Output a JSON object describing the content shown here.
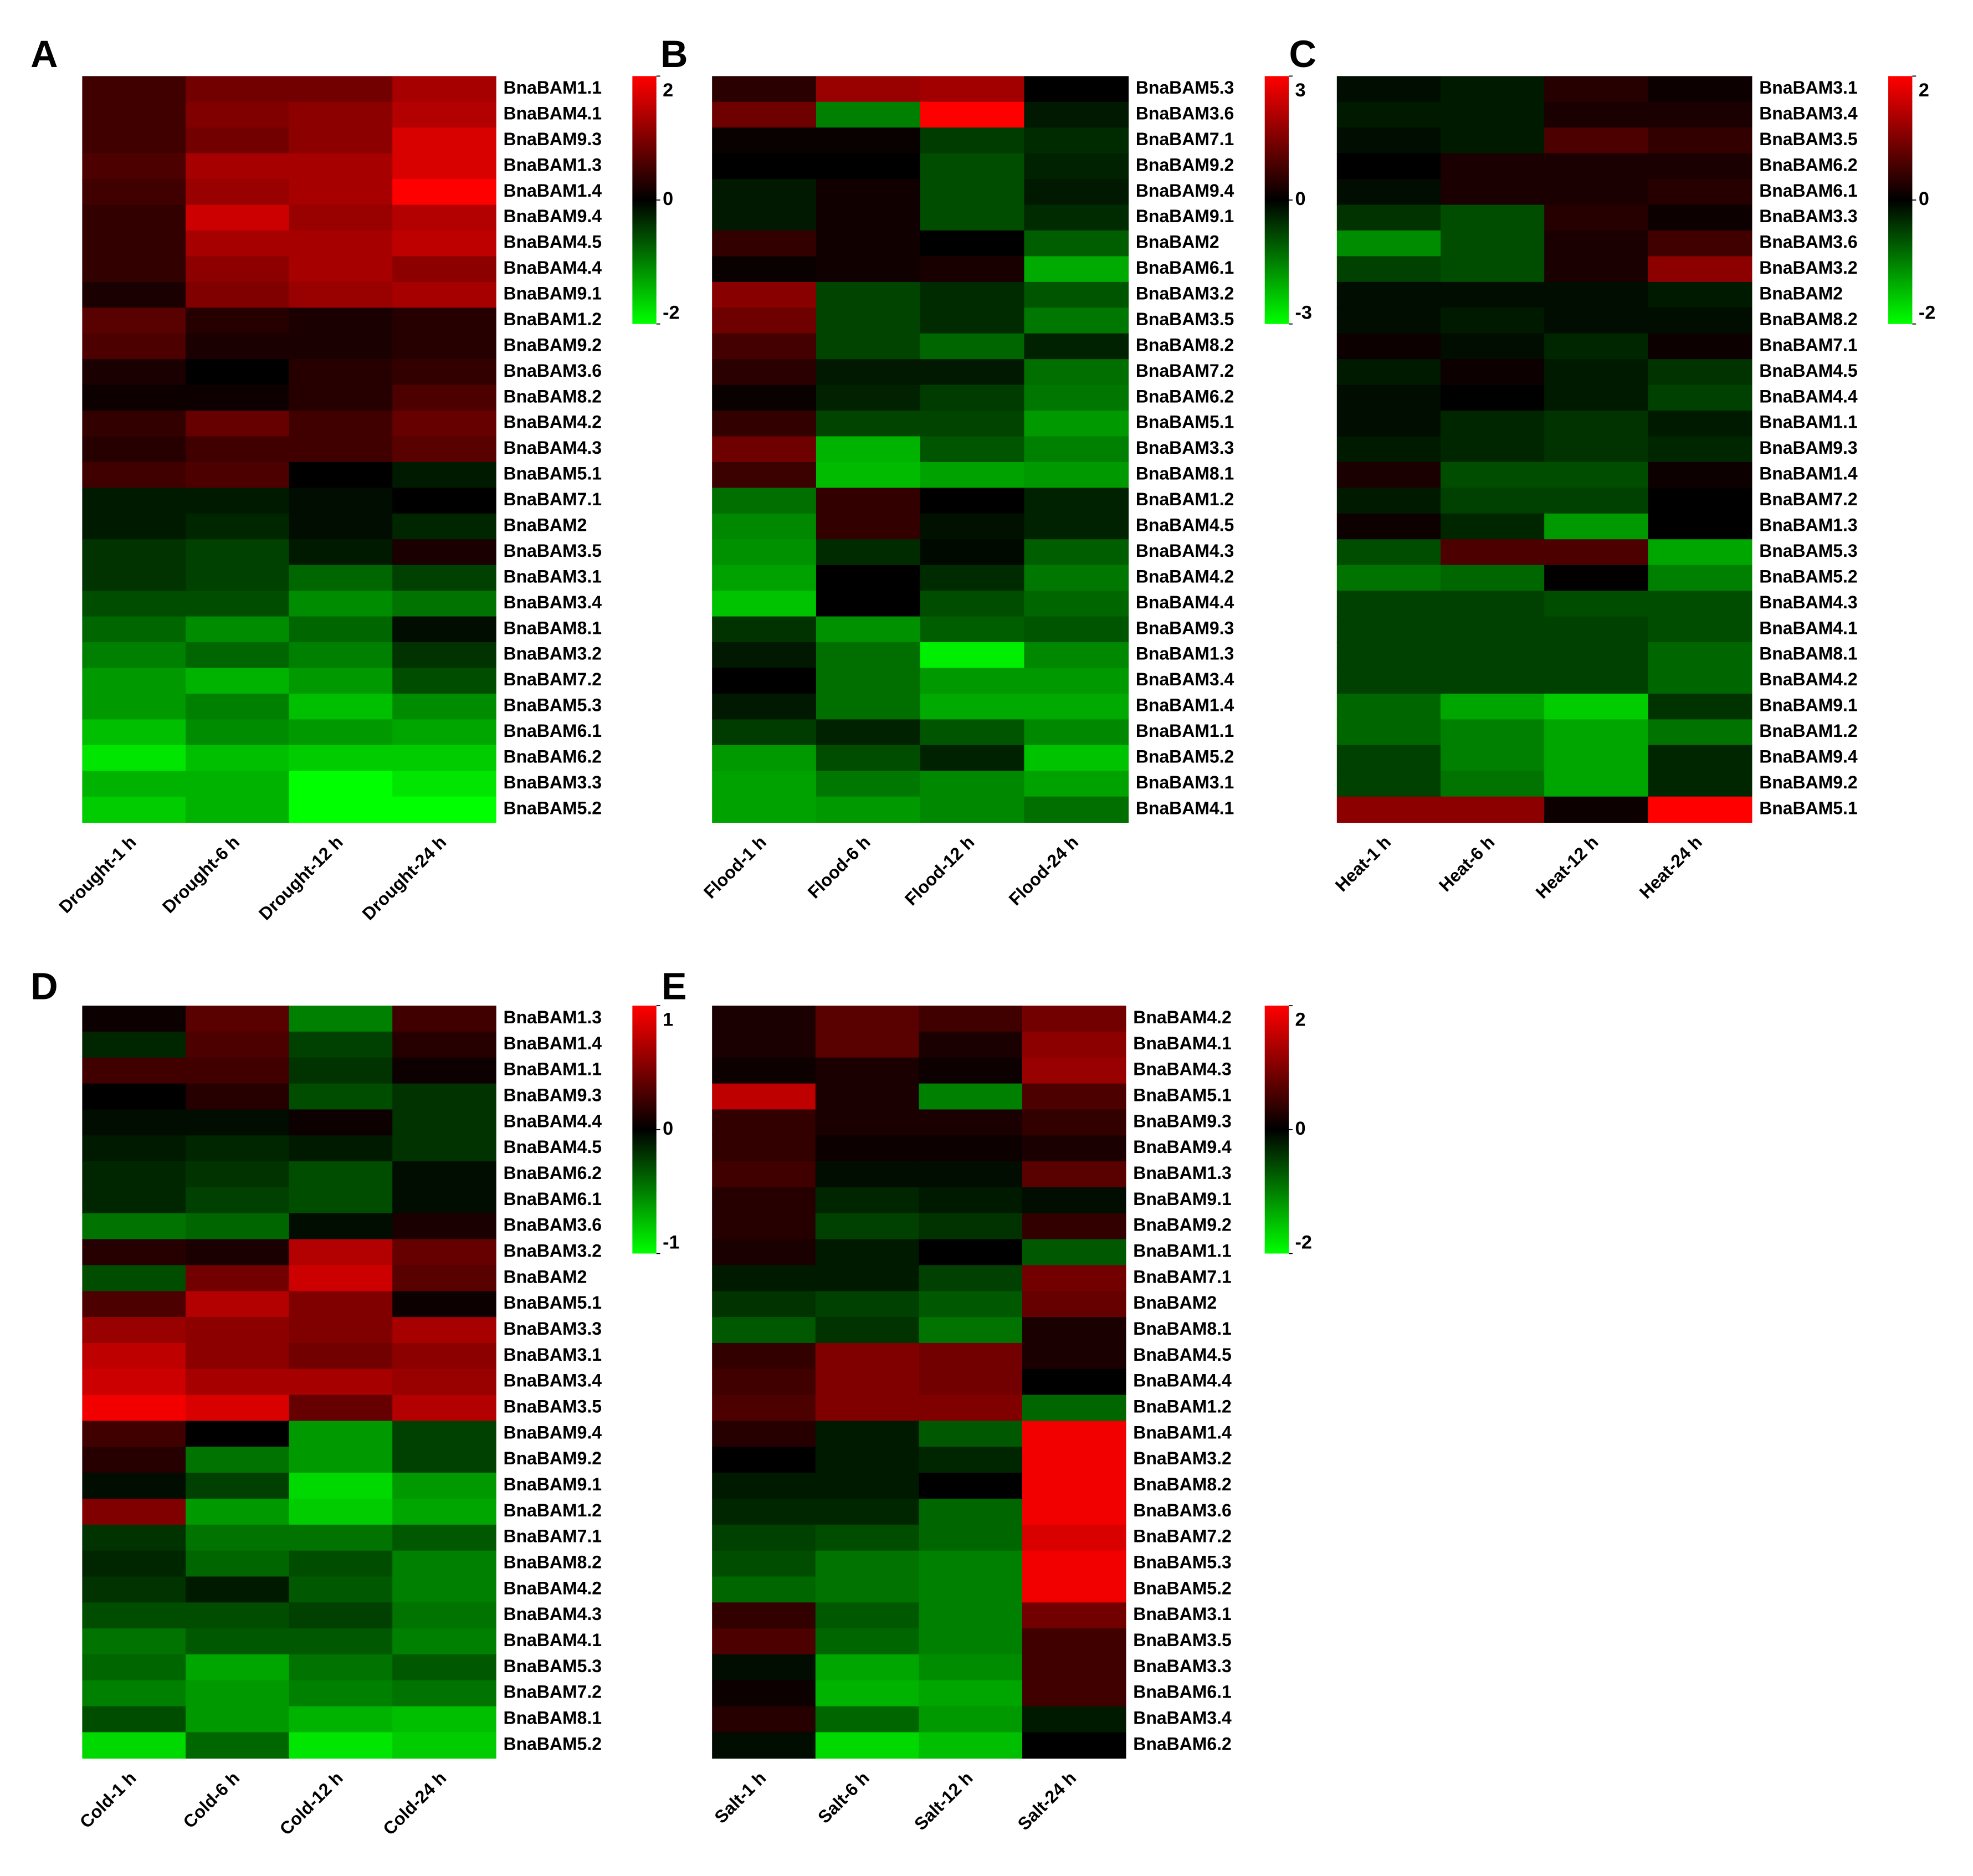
{
  "chart_data": [
    {
      "type": "heatmap",
      "panel": "A",
      "x": [
        "Drought-1 h",
        "Drought-6 h",
        "Drought-12 h",
        "Drought-24 h"
      ],
      "y": [
        "BnaBAM1.1",
        "BnaBAM4.1",
        "BnaBAM9.3",
        "BnaBAM1.3",
        "BnaBAM1.4",
        "BnaBAM9.4",
        "BnaBAM4.5",
        "BnaBAM4.4",
        "BnaBAM9.1",
        "BnaBAM1.2",
        "BnaBAM9.2",
        "BnaBAM3.6",
        "BnaBAM8.2",
        "BnaBAM4.2",
        "BnaBAM4.3",
        "BnaBAM5.1",
        "BnaBAM7.1",
        "BnaBAM2",
        "BnaBAM3.5",
        "BnaBAM3.1",
        "BnaBAM3.4",
        "BnaBAM8.1",
        "BnaBAM3.2",
        "BnaBAM7.2",
        "BnaBAM5.3",
        "BnaBAM6.1",
        "BnaBAM6.2",
        "BnaBAM3.3",
        "BnaBAM5.2"
      ],
      "values": [
        [
          0.5,
          0.9,
          0.9,
          1.3
        ],
        [
          0.5,
          1.0,
          1.1,
          1.4
        ],
        [
          0.5,
          0.9,
          1.1,
          1.7
        ],
        [
          0.6,
          1.3,
          1.3,
          1.7
        ],
        [
          0.5,
          1.2,
          1.3,
          2.0
        ],
        [
          0.4,
          1.6,
          1.2,
          1.4
        ],
        [
          0.4,
          1.3,
          1.3,
          1.5
        ],
        [
          0.4,
          1.1,
          1.3,
          1.1
        ],
        [
          0.2,
          1.0,
          1.2,
          1.3
        ],
        [
          0.7,
          0.3,
          0.2,
          0.3
        ],
        [
          0.6,
          0.2,
          0.2,
          0.3
        ],
        [
          0.2,
          0.0,
          0.3,
          0.4
        ],
        [
          0.1,
          0.1,
          0.3,
          0.6
        ],
        [
          0.4,
          0.8,
          0.5,
          0.8
        ],
        [
          0.3,
          0.5,
          0.5,
          0.7
        ],
        [
          0.5,
          0.6,
          0.0,
          -0.2
        ],
        [
          -0.2,
          -0.2,
          -0.1,
          0.0
        ],
        [
          -0.2,
          -0.3,
          -0.1,
          -0.3
        ],
        [
          -0.4,
          -0.5,
          -0.2,
          0.2
        ],
        [
          -0.4,
          -0.5,
          -0.8,
          -0.5
        ],
        [
          -0.6,
          -0.6,
          -1.1,
          -0.9
        ],
        [
          -0.8,
          -1.1,
          -0.8,
          -0.1
        ],
        [
          -1.0,
          -0.8,
          -1.0,
          -0.4
        ],
        [
          -1.2,
          -1.4,
          -1.2,
          -0.6
        ],
        [
          -1.2,
          -1.0,
          -1.5,
          -1.1
        ],
        [
          -1.5,
          -1.1,
          -1.2,
          -1.3
        ],
        [
          -1.8,
          -1.5,
          -1.6,
          -1.6
        ],
        [
          -1.4,
          -1.4,
          -2.0,
          -1.8
        ],
        [
          -1.6,
          -1.4,
          -2.0,
          -2.0
        ]
      ],
      "zlim": [
        -2,
        2
      ],
      "zticks": [
        2,
        0,
        -2
      ],
      "colors": [
        "#00ff00",
        "#000000",
        "#ff0000"
      ]
    },
    {
      "type": "heatmap",
      "panel": "B",
      "x": [
        "Flood-1 h",
        "Flood-6 h",
        "Flood-12 h",
        "Flood-24 h"
      ],
      "y": [
        "BnaBAM5.3",
        "BnaBAM3.6",
        "BnaBAM7.1",
        "BnaBAM9.2",
        "BnaBAM9.4",
        "BnaBAM9.1",
        "BnaBAM2",
        "BnaBAM6.1",
        "BnaBAM3.2",
        "BnaBAM3.5",
        "BnaBAM8.2",
        "BnaBAM7.2",
        "BnaBAM6.2",
        "BnaBAM5.1",
        "BnaBAM3.3",
        "BnaBAM8.1",
        "BnaBAM1.2",
        "BnaBAM4.5",
        "BnaBAM4.3",
        "BnaBAM4.2",
        "BnaBAM4.4",
        "BnaBAM9.3",
        "BnaBAM1.3",
        "BnaBAM3.4",
        "BnaBAM1.4",
        "BnaBAM1.1",
        "BnaBAM5.2",
        "BnaBAM3.1",
        "BnaBAM4.1"
      ],
      "values": [
        [
          0.5,
          1.8,
          1.9,
          0.0
        ],
        [
          1.3,
          -1.5,
          3.0,
          -0.3
        ],
        [
          0.1,
          0.1,
          -0.7,
          -0.5
        ],
        [
          0.0,
          0.0,
          -0.9,
          -0.4
        ],
        [
          -0.3,
          0.2,
          -0.9,
          -0.3
        ],
        [
          -0.3,
          0.2,
          -0.9,
          -0.5
        ],
        [
          0.6,
          0.2,
          0.0,
          -1.1
        ],
        [
          0.1,
          0.2,
          0.3,
          -2.0
        ],
        [
          1.6,
          -0.8,
          -0.5,
          -1.0
        ],
        [
          1.3,
          -0.8,
          -0.5,
          -1.4
        ],
        [
          0.8,
          -0.8,
          -1.2,
          -0.4
        ],
        [
          0.5,
          -0.3,
          -0.3,
          -1.3
        ],
        [
          0.1,
          -0.4,
          -0.7,
          -1.4
        ],
        [
          0.6,
          -0.8,
          -0.8,
          -1.8
        ],
        [
          1.3,
          -2.1,
          -1.0,
          -1.5
        ],
        [
          0.7,
          -2.2,
          -1.9,
          -1.8
        ],
        [
          -1.3,
          0.6,
          0.0,
          -0.4
        ],
        [
          -1.6,
          0.6,
          -0.2,
          -0.4
        ],
        [
          -1.7,
          -0.5,
          -0.1,
          -1.1
        ],
        [
          -1.9,
          0.0,
          -0.5,
          -1.4
        ],
        [
          -2.3,
          0.0,
          -0.9,
          -1.2
        ],
        [
          -0.6,
          -1.7,
          -1.1,
          -1.0
        ],
        [
          -0.3,
          -1.3,
          -2.8,
          -1.6
        ],
        [
          0.0,
          -1.3,
          -1.8,
          -1.8
        ],
        [
          -0.3,
          -1.3,
          -2.0,
          -2.0
        ],
        [
          -0.7,
          -0.4,
          -1.0,
          -1.6
        ],
        [
          -1.8,
          -0.9,
          -0.4,
          -2.3
        ],
        [
          -1.9,
          -1.4,
          -1.6,
          -1.9
        ],
        [
          -1.9,
          -1.8,
          -1.6,
          -1.3
        ]
      ],
      "zlim": [
        -3,
        3
      ],
      "zticks": [
        3,
        0,
        -3
      ],
      "colors": [
        "#00ff00",
        "#000000",
        "#ff0000"
      ]
    },
    {
      "type": "heatmap",
      "panel": "C",
      "x": [
        "Heat-1 h",
        "Heat-6 h",
        "Heat-12 h",
        "Heat-24 h"
      ],
      "y": [
        "BnaBAM3.1",
        "BnaBAM3.4",
        "BnaBAM3.5",
        "BnaBAM6.2",
        "BnaBAM6.1",
        "BnaBAM3.3",
        "BnaBAM3.6",
        "BnaBAM3.2",
        "BnaBAM2",
        "BnaBAM8.2",
        "BnaBAM7.1",
        "BnaBAM4.5",
        "BnaBAM4.4",
        "BnaBAM1.1",
        "BnaBAM9.3",
        "BnaBAM1.4",
        "BnaBAM7.2",
        "BnaBAM1.3",
        "BnaBAM5.3",
        "BnaBAM5.2",
        "BnaBAM4.3",
        "BnaBAM4.1",
        "BnaBAM8.1",
        "BnaBAM4.2",
        "BnaBAM9.1",
        "BnaBAM1.2",
        "BnaBAM9.4",
        "BnaBAM9.2",
        "BnaBAM5.1"
      ],
      "values": [
        [
          -0.1,
          -0.2,
          0.3,
          0.1
        ],
        [
          -0.2,
          -0.2,
          0.2,
          0.2
        ],
        [
          -0.1,
          -0.2,
          0.6,
          0.4
        ],
        [
          0.0,
          0.2,
          0.2,
          0.2
        ],
        [
          -0.1,
          0.2,
          0.2,
          0.3
        ],
        [
          -0.4,
          -0.6,
          0.3,
          0.1
        ],
        [
          -1.1,
          -0.6,
          0.2,
          0.5
        ],
        [
          -0.5,
          -0.6,
          0.2,
          1.1
        ],
        [
          -0.1,
          -0.1,
          -0.1,
          -0.2
        ],
        [
          -0.1,
          -0.2,
          -0.1,
          -0.1
        ],
        [
          0.1,
          -0.1,
          -0.3,
          0.1
        ],
        [
          -0.2,
          0.1,
          -0.2,
          -0.4
        ],
        [
          -0.1,
          0.0,
          -0.2,
          -0.5
        ],
        [
          -0.1,
          -0.3,
          -0.4,
          -0.2
        ],
        [
          -0.2,
          -0.3,
          -0.4,
          -0.3
        ],
        [
          0.2,
          -0.6,
          -0.6,
          0.1
        ],
        [
          -0.2,
          -0.5,
          -0.5,
          0.0
        ],
        [
          0.1,
          -0.3,
          -1.2,
          0.0
        ],
        [
          -0.6,
          0.6,
          0.6,
          -1.3
        ],
        [
          -0.9,
          -0.8,
          0.0,
          -1.0
        ],
        [
          -0.5,
          -0.5,
          -0.6,
          -0.6
        ],
        [
          -0.5,
          -0.5,
          -0.5,
          -0.6
        ],
        [
          -0.5,
          -0.5,
          -0.5,
          -0.8
        ],
        [
          -0.5,
          -0.5,
          -0.5,
          -0.8
        ],
        [
          -0.8,
          -1.3,
          -1.6,
          -0.4
        ],
        [
          -0.8,
          -1.0,
          -1.3,
          -0.9
        ],
        [
          -0.5,
          -1.0,
          -1.3,
          -0.3
        ],
        [
          -0.5,
          -0.9,
          -1.3,
          -0.3
        ],
        [
          1.1,
          1.1,
          0.1,
          2.0
        ]
      ],
      "zlim": [
        -2,
        2
      ],
      "zticks": [
        2,
        0,
        -2
      ],
      "colors": [
        "#00ff00",
        "#000000",
        "#ff0000"
      ]
    },
    {
      "type": "heatmap",
      "panel": "D",
      "x": [
        "Cold-1 h",
        "Cold-6 h",
        "Cold-12 h",
        "Cold-24 h"
      ],
      "y": [
        "BnaBAM1.3",
        "BnaBAM1.4",
        "BnaBAM1.1",
        "BnaBAM9.3",
        "BnaBAM4.4",
        "BnaBAM4.5",
        "BnaBAM6.2",
        "BnaBAM6.1",
        "BnaBAM3.6",
        "BnaBAM3.2",
        "BnaBAM2",
        "BnaBAM5.1",
        "BnaBAM3.3",
        "BnaBAM3.1",
        "BnaBAM3.4",
        "BnaBAM3.5",
        "BnaBAM9.4",
        "BnaBAM9.2",
        "BnaBAM9.1",
        "BnaBAM1.2",
        "BnaBAM7.1",
        "BnaBAM8.2",
        "BnaBAM4.2",
        "BnaBAM4.3",
        "BnaBAM4.1",
        "BnaBAM5.3",
        "BnaBAM7.2",
        "BnaBAM8.1",
        "BnaBAM5.2"
      ],
      "values": [
        [
          0.05,
          0.35,
          -0.5,
          0.25
        ],
        [
          -0.15,
          0.3,
          -0.25,
          0.15
        ],
        [
          0.25,
          0.25,
          -0.2,
          0.05
        ],
        [
          0.0,
          0.15,
          -0.3,
          -0.2
        ],
        [
          -0.05,
          -0.05,
          0.05,
          -0.2
        ],
        [
          -0.1,
          -0.15,
          -0.1,
          -0.2
        ],
        [
          -0.15,
          -0.2,
          -0.3,
          -0.05
        ],
        [
          -0.15,
          -0.25,
          -0.3,
          -0.05
        ],
        [
          -0.45,
          -0.4,
          -0.05,
          0.1
        ],
        [
          0.15,
          0.1,
          0.7,
          0.4
        ],
        [
          -0.3,
          0.45,
          0.8,
          0.35
        ],
        [
          0.3,
          0.7,
          0.5,
          0.05
        ],
        [
          0.6,
          0.55,
          0.5,
          0.65
        ],
        [
          0.75,
          0.55,
          0.45,
          0.55
        ],
        [
          0.8,
          0.65,
          0.65,
          0.6
        ],
        [
          0.95,
          0.85,
          0.4,
          0.7
        ],
        [
          0.25,
          0.0,
          -0.6,
          -0.25
        ],
        [
          0.15,
          -0.45,
          -0.6,
          -0.25
        ],
        [
          -0.05,
          -0.25,
          -0.85,
          -0.6
        ],
        [
          0.5,
          -0.6,
          -0.8,
          -0.65
        ],
        [
          -0.2,
          -0.45,
          -0.45,
          -0.35
        ],
        [
          -0.15,
          -0.4,
          -0.3,
          -0.5
        ],
        [
          -0.2,
          -0.1,
          -0.35,
          -0.5
        ],
        [
          -0.3,
          -0.3,
          -0.25,
          -0.45
        ],
        [
          -0.45,
          -0.35,
          -0.35,
          -0.5
        ],
        [
          -0.4,
          -0.65,
          -0.45,
          -0.35
        ],
        [
          -0.5,
          -0.6,
          -0.5,
          -0.45
        ],
        [
          -0.3,
          -0.6,
          -0.7,
          -0.75
        ],
        [
          -0.85,
          -0.4,
          -0.9,
          -0.8
        ]
      ],
      "zlim": [
        -1,
        1
      ],
      "zticks": [
        1,
        0,
        -1
      ],
      "colors": [
        "#00ff00",
        "#000000",
        "#ff0000"
      ]
    },
    {
      "type": "heatmap",
      "panel": "E",
      "x": [
        "Salt-1 h",
        "Salt-6 h",
        "Salt-12 h",
        "Salt-24 h"
      ],
      "y": [
        "BnaBAM4.2",
        "BnaBAM4.1",
        "BnaBAM4.3",
        "BnaBAM5.1",
        "BnaBAM9.3",
        "BnaBAM9.4",
        "BnaBAM1.3",
        "BnaBAM9.1",
        "BnaBAM9.2",
        "BnaBAM1.1",
        "BnaBAM7.1",
        "BnaBAM2",
        "BnaBAM8.1",
        "BnaBAM4.5",
        "BnaBAM4.4",
        "BnaBAM1.2",
        "BnaBAM1.4",
        "BnaBAM3.2",
        "BnaBAM8.2",
        "BnaBAM3.6",
        "BnaBAM7.2",
        "BnaBAM5.3",
        "BnaBAM5.2",
        "BnaBAM3.1",
        "BnaBAM3.5",
        "BnaBAM3.3",
        "BnaBAM6.1",
        "BnaBAM3.4",
        "BnaBAM6.2"
      ],
      "values": [
        [
          0.2,
          0.7,
          0.5,
          0.9
        ],
        [
          0.2,
          0.7,
          0.2,
          1.1
        ],
        [
          0.1,
          0.2,
          0.1,
          1.2
        ],
        [
          1.5,
          0.2,
          -1.0,
          0.6
        ],
        [
          0.4,
          0.2,
          0.2,
          0.4
        ],
        [
          0.4,
          0.1,
          0.1,
          0.2
        ],
        [
          0.5,
          -0.1,
          -0.1,
          0.7
        ],
        [
          0.3,
          -0.3,
          -0.2,
          -0.1
        ],
        [
          0.3,
          -0.5,
          -0.4,
          0.4
        ],
        [
          0.2,
          -0.2,
          0.0,
          -0.7
        ],
        [
          -0.2,
          -0.2,
          -0.5,
          0.9
        ],
        [
          -0.4,
          -0.5,
          -0.7,
          0.8
        ],
        [
          -0.7,
          -0.4,
          -0.9,
          0.2
        ],
        [
          0.4,
          1.0,
          0.9,
          0.2
        ],
        [
          0.5,
          1.0,
          0.9,
          0.0
        ],
        [
          0.6,
          1.0,
          1.0,
          -0.8
        ],
        [
          0.3,
          -0.2,
          -0.7,
          1.9
        ],
        [
          0.0,
          -0.2,
          -0.3,
          1.9
        ],
        [
          -0.2,
          -0.2,
          0.0,
          1.9
        ],
        [
          -0.3,
          -0.3,
          -0.8,
          1.9
        ],
        [
          -0.5,
          -0.6,
          -0.8,
          1.7
        ],
        [
          -0.6,
          -0.9,
          -1.0,
          1.9
        ],
        [
          -0.8,
          -0.9,
          -1.0,
          1.9
        ],
        [
          0.4,
          -0.7,
          -1.0,
          0.9
        ],
        [
          0.6,
          -0.8,
          -1.0,
          0.5
        ],
        [
          -0.1,
          -1.3,
          -1.1,
          0.5
        ],
        [
          0.1,
          -1.4,
          -1.3,
          0.5
        ],
        [
          0.3,
          -0.8,
          -1.2,
          -0.2
        ],
        [
          -0.1,
          -1.7,
          -1.5,
          0.0
        ]
      ],
      "zlim": [
        -2,
        2
      ],
      "zticks": [
        2,
        0,
        -2
      ],
      "colors": [
        "#00ff00",
        "#000000",
        "#ff0000"
      ]
    }
  ]
}
